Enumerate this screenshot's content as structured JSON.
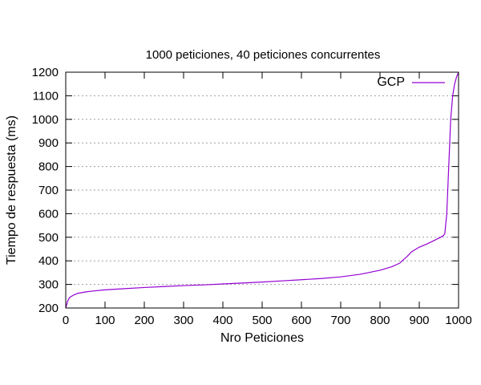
{
  "chart_data": {
    "type": "line",
    "title": "1000 peticiones, 40 peticiones concurrentes",
    "xlabel": "Nro Peticiones",
    "ylabel": "Tiempo de respuesta (ms)",
    "xlim": [
      0,
      1000
    ],
    "ylim": [
      200,
      1200
    ],
    "xticks": [
      0,
      100,
      200,
      300,
      400,
      500,
      600,
      700,
      800,
      900,
      1000
    ],
    "yticks": [
      200,
      300,
      400,
      500,
      600,
      700,
      800,
      900,
      1000,
      1100,
      1200
    ],
    "grid": "horizontal dotted",
    "legend_position": "top-right",
    "series": [
      {
        "name": "GCP",
        "color": "#9400d3",
        "x": [
          0,
          5,
          10,
          20,
          30,
          50,
          70,
          100,
          150,
          200,
          250,
          300,
          350,
          400,
          450,
          500,
          550,
          600,
          650,
          700,
          750,
          800,
          830,
          850,
          860,
          870,
          880,
          900,
          920,
          940,
          960,
          965,
          970,
          975,
          980,
          985,
          990,
          995,
          1000
        ],
        "y": [
          200,
          230,
          245,
          255,
          262,
          268,
          272,
          277,
          282,
          287,
          291,
          295,
          298,
          302,
          306,
          310,
          315,
          320,
          325,
          332,
          343,
          360,
          375,
          390,
          405,
          420,
          438,
          458,
          472,
          488,
          505,
          515,
          600,
          800,
          1000,
          1100,
          1150,
          1180,
          1200
        ]
      }
    ]
  }
}
